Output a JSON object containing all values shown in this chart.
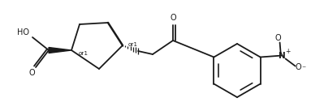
{
  "background_color": "#ffffff",
  "line_color": "#1a1a1a",
  "line_width": 1.3,
  "fig_width": 3.99,
  "fig_height": 1.37,
  "dpi": 100,
  "xlim": [
    0,
    399
  ],
  "ylim": [
    0,
    137
  ]
}
